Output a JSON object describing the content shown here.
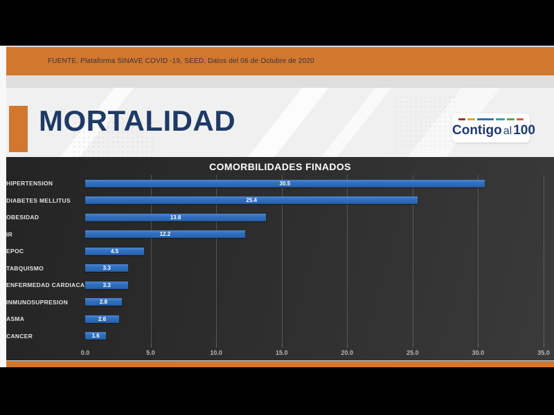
{
  "header": {
    "source_text": "FUENTE. Plataforma SINAVE COVID -19, SEED. Datos del 06 de Octubre de 2020",
    "bar_color": "#d2772e"
  },
  "slide": {
    "title": "MORTALIDAD",
    "title_color": "#1e3a66",
    "accent_color": "#d2772e"
  },
  "logo": {
    "word1": "Contigo",
    "word2": "al",
    "word3": "100",
    "text_color": "#1e3a6e",
    "dash_colors": [
      "#9b3038",
      "#e2a42a",
      "#2e6fb7",
      "#35a2a5",
      "#55a546",
      "#cd5f38"
    ]
  },
  "chart_data": {
    "type": "bar",
    "orientation": "horizontal",
    "title": "COMORBILIDADES FINADOS",
    "categories": [
      "HIPERTENSION",
      "DIABETES MELLITUS",
      "OBESIDAD",
      "IR",
      "EPOC",
      "TABQUISMO",
      "ENFERMEDAD CARDIACA",
      "INMUNOSUPRESION",
      "ASMA",
      "CANCER"
    ],
    "values": [
      30.5,
      25.4,
      13.8,
      12.2,
      4.5,
      3.3,
      3.3,
      2.8,
      2.6,
      1.6
    ],
    "value_labels": [
      "30.5",
      "25.4",
      "13.8",
      "12.2",
      "4.5",
      "3.3",
      "3.3",
      "2.8",
      "2.6",
      "1.6"
    ],
    "xlabel": "",
    "ylabel": "",
    "xlim": [
      0,
      35
    ],
    "x_ticks": [
      "0.0",
      "5.0",
      "10.0",
      "15.0",
      "20.0",
      "25.0",
      "30.0",
      "35.0"
    ],
    "grid": true,
    "legend_position": "none",
    "bar_color": "#2e74c4",
    "background_color": "#2f2e2e",
    "title_color": "#ffffff",
    "label_color": "#e2e2e2",
    "tick_color": "#b7b7b7"
  }
}
